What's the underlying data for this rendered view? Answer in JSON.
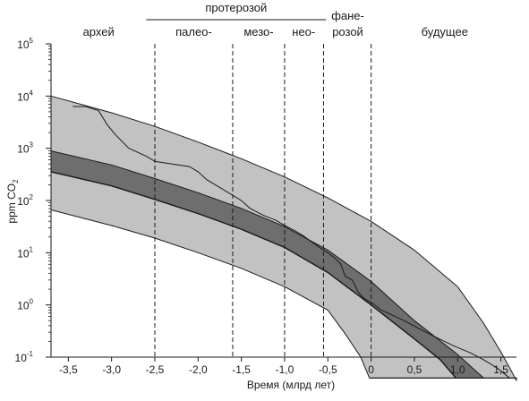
{
  "chart_data": {
    "type": "area",
    "xlabel": "Время (млрд лет)",
    "ylabel": "ppm CO",
    "ylabel_subscript": "2",
    "xlim": [
      -3.7,
      1.68
    ],
    "ylim_log10": [
      -1,
      5
    ],
    "log_scale_y": true,
    "grid": false,
    "x_ticks": [
      {
        "value": -3.5,
        "label": "-3,5"
      },
      {
        "value": -3.0,
        "label": "-3,0"
      },
      {
        "value": -2.5,
        "label": "-2,5"
      },
      {
        "value": -2.0,
        "label": "-2,0"
      },
      {
        "value": -1.5,
        "label": "-1,5"
      },
      {
        "value": -1.0,
        "label": "-1,0"
      },
      {
        "value": -0.5,
        "label": "-0,5"
      },
      {
        "value": 0.0,
        "label": "0"
      },
      {
        "value": 0.5,
        "label": "0,5"
      },
      {
        "value": 1.0,
        "label": "1,0"
      },
      {
        "value": 1.5,
        "label": "1,5"
      }
    ],
    "y_ticks": [
      {
        "exp": -1,
        "base": "10",
        "sup": "-1"
      },
      {
        "exp": 0,
        "base": "10",
        "sup": "0"
      },
      {
        "exp": 1,
        "base": "10",
        "sup": "1"
      },
      {
        "exp": 2,
        "base": "10",
        "sup": "2"
      },
      {
        "exp": 3,
        "base": "10",
        "sup": "3"
      },
      {
        "exp": 4,
        "base": "10",
        "sup": "4"
      },
      {
        "exp": 5,
        "base": "10",
        "sup": "5"
      }
    ],
    "era_boundaries": [
      -2.5,
      -1.6,
      -1.0,
      -0.55,
      0.0
    ],
    "eras": [
      {
        "label": "архей",
        "x": -3.15
      },
      {
        "label": "палео-",
        "x": -2.05
      },
      {
        "label": "мезо-",
        "x": -1.3
      },
      {
        "label": "нео-",
        "x": -0.78
      },
      {
        "label": "розой",
        "x": -0.27
      },
      {
        "label": "будущее",
        "x": 0.85
      }
    ],
    "proterozoic_label": "протерозой",
    "proterozoic_span": [
      -2.6,
      -0.52
    ],
    "phanerozoic_label": "фане-",
    "phanerozoic_x": -0.27,
    "floor_log10": -1.4,
    "series": [
      {
        "role": "outer-band",
        "color": "#c2c2c2",
        "upper": [
          [
            -3.7,
            4.0
          ],
          [
            -3.0,
            3.68
          ],
          [
            -2.5,
            3.42
          ],
          [
            -2.0,
            3.12
          ],
          [
            -1.5,
            2.8
          ],
          [
            -1.0,
            2.45
          ],
          [
            -0.5,
            2.05
          ],
          [
            0.0,
            1.6
          ],
          [
            0.5,
            1.05
          ],
          [
            1.0,
            0.35
          ],
          [
            1.3,
            -0.35
          ],
          [
            1.5,
            -0.9
          ],
          [
            1.6,
            -1.2
          ],
          [
            1.68,
            -1.45
          ]
        ],
        "lower": [
          [
            -3.7,
            1.82
          ],
          [
            -3.0,
            1.52
          ],
          [
            -2.5,
            1.28
          ],
          [
            -2.0,
            1.0
          ],
          [
            -1.5,
            0.7
          ],
          [
            -1.0,
            0.35
          ],
          [
            -0.5,
            -0.1
          ],
          [
            -0.3,
            -0.55
          ],
          [
            -0.12,
            -1.0
          ],
          [
            -0.02,
            -1.4
          ],
          [
            1.68,
            -1.4
          ]
        ]
      },
      {
        "role": "inner-band",
        "color": "#6e6e6e",
        "upper": [
          [
            -3.7,
            2.95
          ],
          [
            -3.0,
            2.68
          ],
          [
            -2.5,
            2.42
          ],
          [
            -2.0,
            2.15
          ],
          [
            -1.5,
            1.85
          ],
          [
            -1.0,
            1.5
          ],
          [
            -0.5,
            1.05
          ],
          [
            0.0,
            0.45
          ],
          [
            0.5,
            -0.3
          ],
          [
            1.0,
            -0.95
          ],
          [
            1.2,
            -1.25
          ],
          [
            1.3,
            -1.4
          ]
        ],
        "lower": [
          [
            -3.7,
            2.55
          ],
          [
            -3.0,
            2.28
          ],
          [
            -2.5,
            2.02
          ],
          [
            -2.0,
            1.75
          ],
          [
            -1.5,
            1.45
          ],
          [
            -1.0,
            1.1
          ],
          [
            -0.5,
            0.62
          ],
          [
            0.0,
            0.0
          ],
          [
            0.5,
            -0.65
          ],
          [
            0.8,
            -1.05
          ],
          [
            0.98,
            -1.4
          ]
        ]
      },
      {
        "role": "central-line",
        "color": "#1a1a1a",
        "points": [
          [
            -3.7,
            2.55
          ],
          [
            -3.0,
            2.28
          ],
          [
            -2.5,
            2.02
          ],
          [
            -2.0,
            1.75
          ],
          [
            -1.5,
            1.45
          ],
          [
            -1.0,
            1.1
          ],
          [
            -0.5,
            0.62
          ],
          [
            0.0,
            0.0
          ],
          [
            0.5,
            -0.65
          ],
          [
            0.8,
            -1.05
          ],
          [
            0.98,
            -1.4
          ]
        ]
      },
      {
        "role": "reconstruction",
        "color": "#1a1a1a",
        "points": [
          [
            -3.45,
            3.8
          ],
          [
            -3.3,
            3.8
          ],
          [
            -3.15,
            3.72
          ],
          [
            -3.05,
            3.45
          ],
          [
            -2.95,
            3.25
          ],
          [
            -2.8,
            3.0
          ],
          [
            -2.6,
            2.85
          ],
          [
            -2.5,
            2.75
          ],
          [
            -2.3,
            2.7
          ],
          [
            -2.1,
            2.65
          ],
          [
            -2.0,
            2.55
          ],
          [
            -1.9,
            2.4
          ],
          [
            -1.75,
            2.25
          ],
          [
            -1.6,
            2.1
          ],
          [
            -1.5,
            2.0
          ],
          [
            -1.4,
            1.85
          ],
          [
            -1.25,
            1.72
          ],
          [
            -1.1,
            1.62
          ],
          [
            -1.0,
            1.52
          ],
          [
            -0.88,
            1.42
          ],
          [
            -0.78,
            1.32
          ],
          [
            -0.68,
            1.2
          ],
          [
            -0.58,
            1.08
          ],
          [
            -0.5,
            1.0
          ],
          [
            -0.42,
            0.9
          ],
          [
            -0.35,
            0.78
          ],
          [
            -0.3,
            0.55
          ],
          [
            -0.22,
            0.48
          ],
          [
            -0.15,
            0.25
          ],
          [
            -0.08,
            0.12
          ],
          [
            0.0,
            0.05
          ],
          [
            0.12,
            -0.1
          ],
          [
            0.25,
            -0.2
          ],
          [
            0.38,
            -0.3
          ],
          [
            0.55,
            -0.45
          ],
          [
            0.75,
            -0.62
          ],
          [
            0.95,
            -0.78
          ],
          [
            1.15,
            -0.92
          ],
          [
            1.3,
            -1.05
          ],
          [
            1.45,
            -1.2
          ],
          [
            1.6,
            -1.4
          ]
        ]
      }
    ]
  }
}
